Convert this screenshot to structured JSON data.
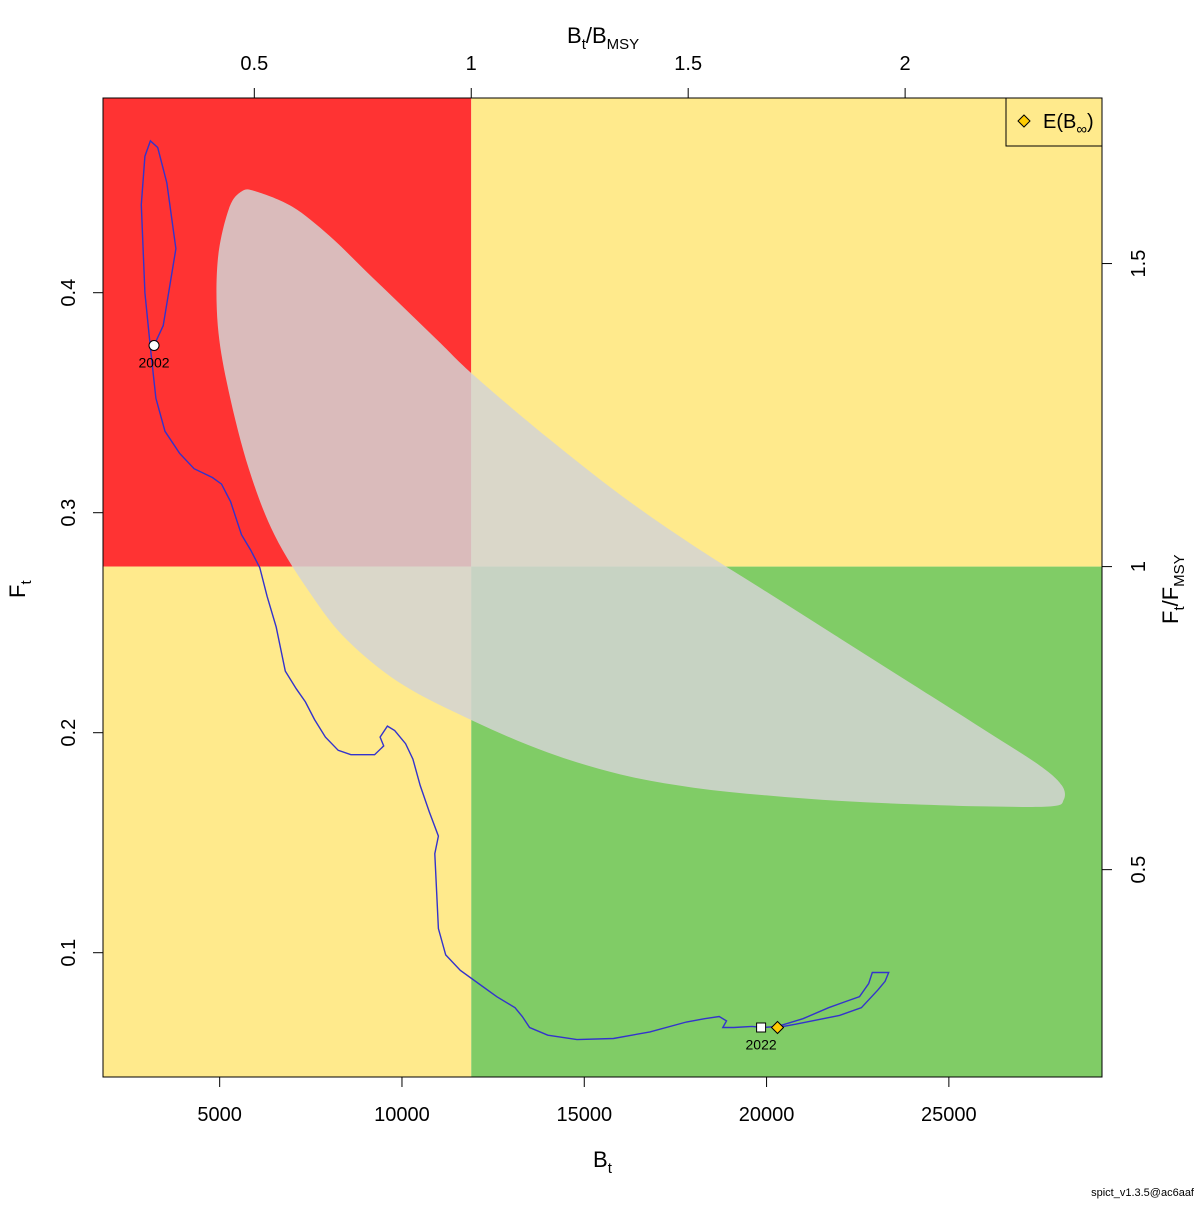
{
  "chart_data": {
    "type": "line",
    "axes": {
      "x": {
        "label": "B",
        "label_sub": "t",
        "range": [
          1800,
          29200
        ],
        "ticks": [
          5000,
          10000,
          15000,
          20000,
          25000
        ],
        "tick_labels": [
          "5000",
          "10000",
          "15000",
          "20000",
          "25000"
        ]
      },
      "y": {
        "label": "F",
        "label_sub": "t",
        "range": [
          0.0435,
          0.4885
        ],
        "ticks": [
          0.1,
          0.2,
          0.3,
          0.4
        ],
        "tick_labels": [
          "0.1",
          "0.2",
          "0.3",
          "0.4"
        ]
      },
      "x_top": {
        "label_main": "B",
        "label_sub1": "t",
        "label_slash": "/B",
        "label_sub2": "MSY",
        "bmsy": 11900,
        "ticks": [
          0.5,
          1,
          1.5,
          2
        ],
        "tick_labels": [
          "0.5",
          "1",
          "1.5",
          "2"
        ]
      },
      "y_right": {
        "label_main": "F",
        "label_sub1": "t",
        "label_slash": "/F",
        "label_sub2": "MSY",
        "fmsy": 0.2755,
        "ticks": [
          0.5,
          1,
          1.5
        ],
        "tick_labels": [
          "0.5",
          "1",
          "1.5"
        ]
      }
    },
    "reference_points": {
      "bmsy": 11900,
      "fmsy": 0.2755
    },
    "quadrants": {
      "overfishing_overfished": "#ff3333",
      "underfishing_overfished": "#ffea8c",
      "overfishing_not_overfished": "#ffea8c",
      "sustainable": "#80cc66"
    },
    "confidence_region": {
      "color": "#d3d3d3",
      "opacity": 0.85,
      "outline": [
        [
          6000,
          0.446
        ],
        [
          7000,
          0.439
        ],
        [
          8000,
          0.426
        ],
        [
          9000,
          0.41
        ],
        [
          10000,
          0.394
        ],
        [
          11000,
          0.378
        ],
        [
          12000,
          0.362
        ],
        [
          14000,
          0.334
        ],
        [
          16000,
          0.308
        ],
        [
          18000,
          0.285
        ],
        [
          20000,
          0.264
        ],
        [
          22000,
          0.243
        ],
        [
          24000,
          0.222
        ],
        [
          26000,
          0.201
        ],
        [
          27500,
          0.185
        ],
        [
          28100,
          0.176
        ],
        [
          28150,
          0.1695
        ],
        [
          27800,
          0.1665
        ],
        [
          26000,
          0.1665
        ],
        [
          24000,
          0.1675
        ],
        [
          22000,
          0.169
        ],
        [
          20000,
          0.1715
        ],
        [
          18000,
          0.175
        ],
        [
          16000,
          0.181
        ],
        [
          14000,
          0.191
        ],
        [
          12000,
          0.205
        ],
        [
          10000,
          0.222
        ],
        [
          8500,
          0.242
        ],
        [
          7500,
          0.263
        ],
        [
          6500,
          0.29
        ],
        [
          5800,
          0.32
        ],
        [
          5250,
          0.355
        ],
        [
          4950,
          0.385
        ],
        [
          4950,
          0.415
        ],
        [
          5250,
          0.438
        ],
        [
          5600,
          0.446
        ],
        [
          6000,
          0.446
        ]
      ]
    },
    "series": [
      {
        "name": "trajectory",
        "color": "#3333cc",
        "points": [
          [
            3200,
            0.376
          ],
          [
            3450,
            0.385
          ],
          [
            3800,
            0.42
          ],
          [
            3550,
            0.45
          ],
          [
            3300,
            0.466
          ],
          [
            3100,
            0.469
          ],
          [
            2950,
            0.462
          ],
          [
            2850,
            0.44
          ],
          [
            2950,
            0.4
          ],
          [
            3100,
            0.375
          ],
          [
            3250,
            0.352
          ],
          [
            3500,
            0.337
          ],
          [
            3900,
            0.327
          ],
          [
            4300,
            0.32
          ],
          [
            4800,
            0.316
          ],
          [
            5050,
            0.313
          ],
          [
            5300,
            0.305
          ],
          [
            5600,
            0.29
          ],
          [
            5850,
            0.283
          ],
          [
            6100,
            0.275
          ],
          [
            6300,
            0.262
          ],
          [
            6550,
            0.248
          ],
          [
            6800,
            0.228
          ],
          [
            7100,
            0.22
          ],
          [
            7350,
            0.214
          ],
          [
            7600,
            0.206
          ],
          [
            7900,
            0.198
          ],
          [
            8250,
            0.192
          ],
          [
            8600,
            0.19
          ],
          [
            9000,
            0.19
          ],
          [
            9250,
            0.19
          ],
          [
            9500,
            0.194
          ],
          [
            9400,
            0.198
          ],
          [
            9600,
            0.203
          ],
          [
            9800,
            0.201
          ],
          [
            10100,
            0.195
          ],
          [
            10300,
            0.188
          ],
          [
            10500,
            0.176
          ],
          [
            10750,
            0.164
          ],
          [
            11000,
            0.153
          ],
          [
            10900,
            0.145
          ],
          [
            10950,
            0.128
          ],
          [
            11000,
            0.111
          ],
          [
            11200,
            0.099
          ],
          [
            11600,
            0.092
          ],
          [
            12100,
            0.086
          ],
          [
            12600,
            0.08
          ],
          [
            13100,
            0.075
          ],
          [
            13300,
            0.071
          ],
          [
            13500,
            0.066
          ],
          [
            14000,
            0.0625
          ],
          [
            14800,
            0.0605
          ],
          [
            15800,
            0.061
          ],
          [
            16800,
            0.064
          ],
          [
            17800,
            0.0685
          ],
          [
            18300,
            0.07
          ],
          [
            18700,
            0.071
          ],
          [
            18900,
            0.069
          ],
          [
            18800,
            0.066
          ],
          [
            19100,
            0.066
          ],
          [
            19600,
            0.0665
          ],
          [
            19900,
            0.066
          ],
          [
            20300,
            0.0665
          ],
          [
            21000,
            0.07
          ],
          [
            21700,
            0.075
          ],
          [
            22200,
            0.078
          ],
          [
            22550,
            0.08
          ],
          [
            22800,
            0.086
          ],
          [
            22900,
            0.091
          ],
          [
            23350,
            0.091
          ],
          [
            23250,
            0.087
          ],
          [
            23050,
            0.083
          ],
          [
            22600,
            0.075
          ],
          [
            22000,
            0.0715
          ],
          [
            21400,
            0.0695
          ],
          [
            20800,
            0.0675
          ],
          [
            20300,
            0.066
          ]
        ]
      }
    ],
    "markers": [
      {
        "name": "start-year-marker",
        "x": 3200,
        "y": 0.376,
        "shape": "circle",
        "fill": "#ffffff",
        "label": "2002"
      },
      {
        "name": "end-year-marker",
        "x": 19850,
        "y": 0.066,
        "shape": "square",
        "fill": "#ffffff",
        "label": "2022"
      },
      {
        "name": "equilibrium-marker",
        "x": 20300,
        "y": 0.066,
        "shape": "diamond",
        "fill": "#ffcc00"
      }
    ],
    "legend": {
      "position": "top-right",
      "label_main": "E(B",
      "label_sub": "∞",
      "label_end": ")",
      "symbol_color": "#ffcc00"
    },
    "footer_text": "spict_v1.3.5@ac6aaf"
  }
}
